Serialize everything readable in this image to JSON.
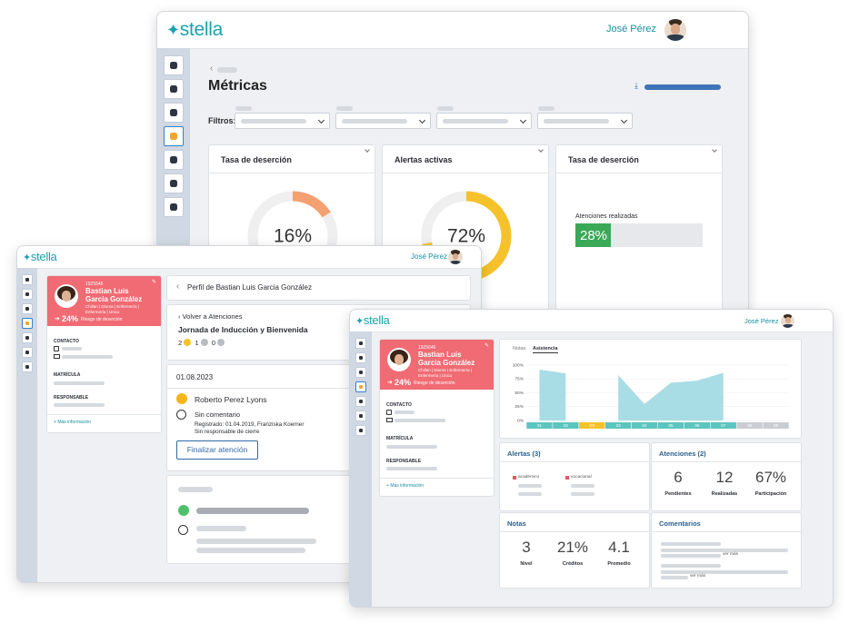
{
  "brand": "stella",
  "user": "José Pérez",
  "metrics": {
    "title": "Métricas",
    "filters_label": "Filtros:",
    "cards": [
      {
        "title": "Tasa de deserción",
        "kind": "donut",
        "value": 16,
        "label": "16%",
        "color": "#f4a070"
      },
      {
        "title": "Alertas activas",
        "kind": "donut",
        "value": 72,
        "label": "72%",
        "color": "#f6c22c"
      },
      {
        "title": "Tasa de deserción",
        "kind": "bar",
        "caption": "Atenciones realizadas",
        "value": 28,
        "label": "28%",
        "color": "#3aa957"
      }
    ]
  },
  "profile": {
    "id": "1925646",
    "name": "Bastian Luis Garcia González",
    "details": "Chillan | Diurna | Enfermería | Enfermería | Único",
    "risk": "24%",
    "risk_label": "Riesgo de deserción",
    "contact": "CONTACTO",
    "enrollment": "MATRÍCULA",
    "guardian": "RESPONSABLE",
    "more": "Más información"
  },
  "attention": {
    "breadcrumb": "Perfil de Bastian Luis Garcia González",
    "back": "Volver a Atenciones",
    "title": "Jornada de Inducción y Bienvenida",
    "counts": [
      2,
      1,
      0
    ],
    "date": "01.08.2023",
    "person": "Roberto Perez Lyons",
    "comment": "Sin comentario",
    "registered": "Registrado: 01.04.2019, Franziska Koerner",
    "closer": "Sin responsable de cierre",
    "button": "Finalizar atención"
  },
  "dashboard": {
    "tabs": [
      "Notas",
      "Asistencia"
    ],
    "attendance": {
      "type": "area",
      "categories": [
        "01",
        "02",
        "XX",
        "03",
        "04",
        "05",
        "06",
        "07",
        "08",
        "09"
      ],
      "values": [
        92,
        85,
        null,
        82,
        30,
        68,
        72,
        86,
        null,
        null
      ],
      "category_colors": [
        "#5cc5c0",
        "#5cc5c0",
        "#f6c22c",
        "#5cc5c0",
        "#5cc5c0",
        "#5cc5c0",
        "#5cc5c0",
        "#5cc5c0",
        "#c9ccd1",
        "#c9ccd1"
      ],
      "color": "#a9dde6",
      "ylim": [
        0,
        100
      ],
      "yticks": [
        {
          "value": 0,
          "label": "0%"
        },
        {
          "value": 25,
          "label": "25%"
        },
        {
          "value": 50,
          "label": "50%"
        },
        {
          "value": 75,
          "label": "75%"
        },
        {
          "value": 100,
          "label": "100%"
        }
      ]
    },
    "alerts": {
      "title": "Alertas (3)",
      "items": [
        "académico",
        "vocacional"
      ]
    },
    "attentions": {
      "title": "Atenciones (2)",
      "stats": [
        {
          "value": "6",
          "label": "Pendientes"
        },
        {
          "value": "12",
          "label": "Realizadas"
        },
        {
          "value": "67%",
          "label": "Participación"
        }
      ]
    },
    "grades": {
      "title": "Notas",
      "stats": [
        {
          "value": "3",
          "label": "Nivel"
        },
        {
          "value": "21%",
          "label": "Créditos"
        },
        {
          "value": "4.1",
          "label": "Promedio"
        }
      ]
    },
    "comments": {
      "title": "Comentarios",
      "more": [
        "ver más",
        "ver más"
      ]
    }
  }
}
